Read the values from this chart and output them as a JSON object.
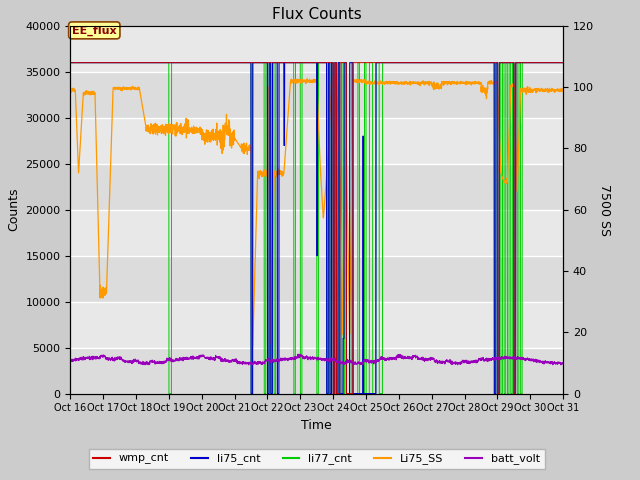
{
  "title": "Flux Counts",
  "xlabel": "Time",
  "ylabel_left": "Counts",
  "ylabel_right": "7500 SS",
  "ylim_left": [
    0,
    40000
  ],
  "ylim_right": [
    0,
    120
  ],
  "annotation_text": "EE_flux",
  "annotation_color": "#8B0000",
  "annotation_bg": "#ffff99",
  "annotation_border": "#8B4000",
  "plot_bg": "#e8e8e8",
  "fig_bg": "#d8d8d8",
  "colors": {
    "wmp_cnt": "#cc0000",
    "li75_cnt": "#0000cc",
    "li77_cnt": "#00cc00",
    "Li75_SS": "#ff9900",
    "batt_volt": "#9900bb"
  },
  "legend_labels": [
    "wmp_cnt",
    "li75_cnt",
    "li77_cnt",
    "Li75_SS",
    "batt_volt"
  ],
  "yticks_left": [
    0,
    5000,
    10000,
    15000,
    20000,
    25000,
    30000,
    35000,
    40000
  ],
  "yticks_right": [
    0,
    20,
    40,
    60,
    80,
    100,
    120
  ],
  "grid_color": "#ffffff",
  "scale": 333.33
}
